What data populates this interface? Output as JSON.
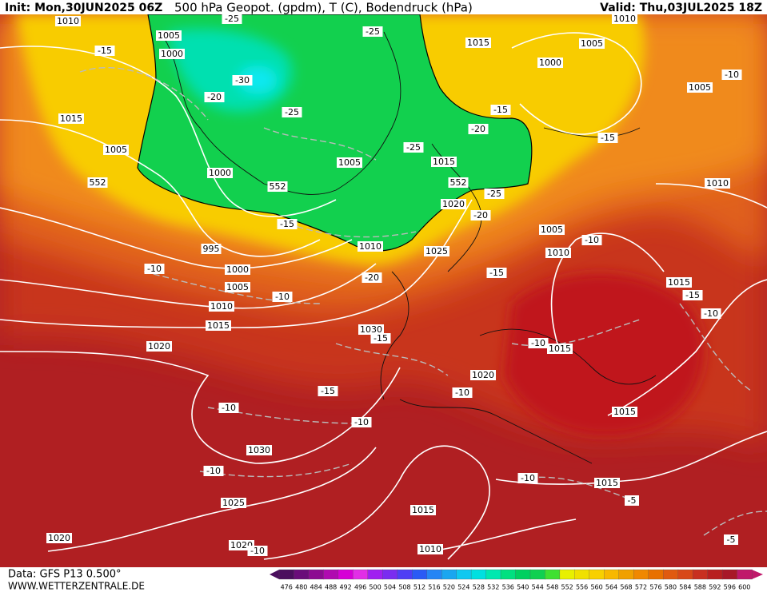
{
  "header": {
    "init": "Init: Mon,30JUN2025 06Z",
    "title": "500 hPa Geopot. (gpdm), T (C), Bodendruck (hPa)",
    "valid": "Valid: Thu,03JUL2025 18Z"
  },
  "footer": {
    "data_source": "Data: GFS P13 0.500°",
    "website": "WWW.WETTERZENTRALE.DE"
  },
  "map_labels": [
    "1010",
    "-25",
    "-25",
    "1010",
    "1005",
    "1015",
    "1005",
    "-15",
    "1000",
    "1000",
    "-30",
    "1005",
    "-10",
    "-20",
    "-25",
    "-15",
    "1015",
    "-20",
    "-15",
    "1005",
    "-25",
    "1015",
    "1005",
    "1000",
    "552",
    "552",
    "552",
    "1010",
    "-25",
    "1020",
    "-20",
    "-15",
    "1005",
    "-10",
    "995",
    "1010",
    "1025",
    "1010",
    "1000",
    "-10",
    "-20",
    "-15",
    "1015",
    "1005",
    "-10",
    "-15",
    "1010",
    "-10",
    "1015",
    "1030",
    "-15",
    "1020",
    "-10",
    "1015",
    "1020",
    "-15",
    "-10",
    "-10",
    "1015",
    "-10",
    "1030",
    "-10",
    "-10",
    "1015",
    "-5",
    "1025",
    "1015",
    "1020",
    "1020",
    "-10",
    "1010",
    "-5"
  ],
  "color_scale": {
    "values": [
      476,
      480,
      484,
      488,
      492,
      496,
      500,
      504,
      508,
      512,
      516,
      520,
      524,
      528,
      532,
      536,
      540,
      544,
      548,
      552,
      556,
      560,
      564,
      568,
      572,
      576,
      580,
      584,
      588,
      592,
      596,
      600
    ],
    "colors": [
      "#4b0f5e",
      "#6a0d7a",
      "#8c0b91",
      "#b00ab0",
      "#d600d6",
      "#e22ee6",
      "#a020f0",
      "#7a2cf0",
      "#4f3ef5",
      "#2a5af5",
      "#2585f5",
      "#1aa6f0",
      "#10c8f0",
      "#00e0e0",
      "#00e8b0",
      "#00e080",
      "#00d060",
      "#10d050",
      "#40e030",
      "#e8f000",
      "#f0e000",
      "#f8d000",
      "#f8b800",
      "#f0a000",
      "#f08800",
      "#e87000",
      "#e05a10",
      "#d84818",
      "#c83020",
      "#b82020",
      "#a81828",
      "#c0186a"
    ]
  }
}
